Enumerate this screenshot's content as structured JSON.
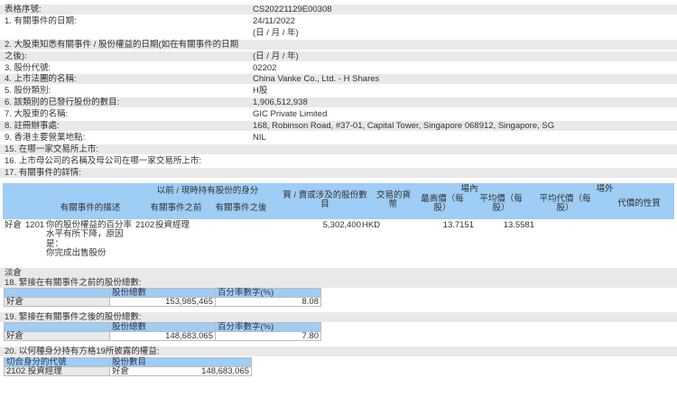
{
  "fields": [
    {
      "label": "表格序號:",
      "value": "CS20221129E00308"
    },
    {
      "label": "1. 有關事件的日期:",
      "value": "24/11/2022"
    },
    {
      "label": "",
      "value": "(日 / 月 / 年)"
    },
    {
      "label": "2. 大股東知悉有關事件 / 股份權益的日期(如在有關事件的日期",
      "value": ""
    },
    {
      "label": "之後):",
      "value": "(日 / 月 / 年)"
    },
    {
      "label": "3. 股份代號:",
      "value": "02202"
    },
    {
      "label": "4. 上市法團的名稱:",
      "value": "China Vanke Co., Ltd. - H Shares"
    },
    {
      "label": "5. 股份類別:",
      "value": "H股"
    },
    {
      "label": "6. 該類別的已發行股份的數目:",
      "value": "1,906,512,938"
    },
    {
      "label": "7. 大股東的名稱:",
      "value": "GIC Private Limited"
    },
    {
      "label": "8. 註冊辦事處:",
      "value": "168, Robinson Road, #37-01, Capital Tower, Singapore 068912, Singapore, SG"
    },
    {
      "label": "9. 香港主要營業地點:",
      "value": "NIL"
    },
    {
      "label": "15. 在哪一家交易所上市:",
      "value": ""
    },
    {
      "label": "16. 上市母公司的名稱及母公司在哪一家交易所上市:",
      "value": ""
    },
    {
      "label": "17. 有關事件的詳情:",
      "value": ""
    }
  ],
  "event_table": {
    "headers": {
      "description": "有關事件的描述",
      "capacity": "以前 / 現時持有股份的身分",
      "before": "有關事件之前",
      "after": "有關事件之後",
      "shares_l1": "買 / 賣或涉及的股份數",
      "shares_l2": "目",
      "currency_l1": "交易的貨",
      "currency_l2": "幣",
      "on_exchange": "場內",
      "highest_l1": "最高價（每",
      "highest_l2": "股）",
      "average_l1": "平均價（每",
      "average_l2": "股）",
      "off_exchange": "場外",
      "avg_consideration_l1": "平均代價（每",
      "avg_consideration_l2": "股）",
      "consideration_nature": "代價的性質"
    },
    "row": {
      "position": "好倉",
      "code": "1201",
      "description": [
        "你的股份權益的百分率",
        "水平有所下降，原因",
        "是：",
        "你完成出售股份"
      ],
      "before_code": "2102",
      "before_label": "投資經理",
      "shares": "5,302,400",
      "currency": "HKD",
      "highest": "13.7151",
      "average": "13.5581"
    },
    "short_label": "淡倉"
  },
  "sec18": {
    "title": "18. 緊接在有關事件之前的股份總數:",
    "col1": "股份總數",
    "col2": "百分率數字(%)",
    "row_label": "好倉",
    "shares": "153,985,465",
    "pct": "8.08"
  },
  "sec19": {
    "title": "19. 緊接在有關事件之後的股份總數:",
    "col1": "股份總數",
    "col2": "百分率數字(%)",
    "row_label": "好倉",
    "shares": "148,683,065",
    "pct": "7.80"
  },
  "sec20": {
    "title": "20. 以何種身分持有方格19所披露的權益:",
    "col1": "切合身分的代號",
    "col2": "股份數目",
    "code": "2102 投資經理",
    "position": "好倉",
    "shares": "148,683,065"
  }
}
